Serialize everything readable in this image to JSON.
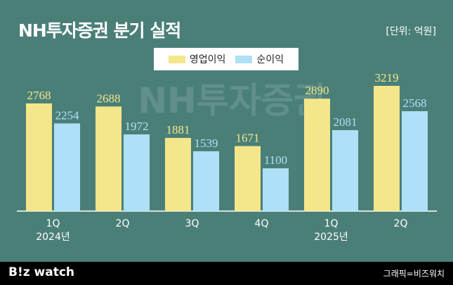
{
  "header": {
    "title": "NH투자증권 분기 실적",
    "unit": "[단위: 억원]"
  },
  "watermark": "NH투자증권",
  "footer": {
    "logo": "B!z watch",
    "credit": "그래픽=비즈워치"
  },
  "colors": {
    "background": "#4a7f78",
    "operating_profit": "#f4e68a",
    "net_profit": "#aee0f7"
  },
  "chart_data": {
    "type": "bar",
    "categories": [
      "1Q",
      "2Q",
      "3Q",
      "4Q",
      "1Q",
      "2Q"
    ],
    "category_sublabels": [
      "2024년",
      "",
      "",
      "",
      "2025년",
      ""
    ],
    "series": [
      {
        "name": "영업이익",
        "values": [
          2768,
          2688,
          1881,
          1671,
          2890,
          3219
        ]
      },
      {
        "name": "순이익",
        "values": [
          2254,
          1972,
          1539,
          1100,
          2081,
          2568
        ]
      }
    ],
    "ylim": [
      0,
      3219
    ],
    "legend_position": "top-center",
    "grid": false
  }
}
